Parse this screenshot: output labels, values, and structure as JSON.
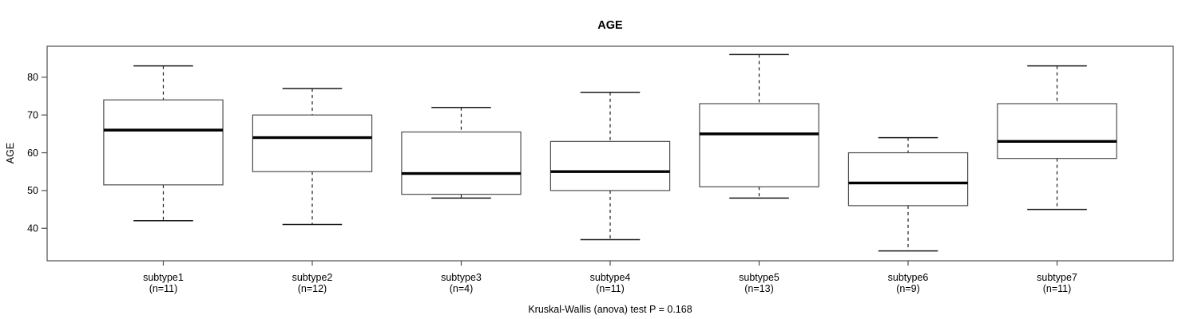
{
  "chart_data": {
    "type": "boxplot",
    "title": "AGE",
    "xlabel": "",
    "ylabel": "AGE",
    "caption": "Kruskal-Wallis (anova) test P = 0.168",
    "ylim": [
      31.4,
      88.2
    ],
    "yticks": [
      40,
      50,
      60,
      70,
      80
    ],
    "grid": false,
    "legend": "none",
    "whisker_line_style": "dashed",
    "box_width": 0.8,
    "groups": [
      {
        "label": "subtype1",
        "n": 11,
        "n_label": "(n=11)",
        "whisker_low": 42,
        "q1": 51.5,
        "median": 66,
        "q3": 74,
        "whisker_high": 83,
        "outliers": []
      },
      {
        "label": "subtype2",
        "n": 12,
        "n_label": "(n=12)",
        "whisker_low": 41,
        "q1": 55,
        "median": 64,
        "q3": 70,
        "whisker_high": 77,
        "outliers": []
      },
      {
        "label": "subtype3",
        "n": 4,
        "n_label": "(n=4)",
        "whisker_low": 48,
        "q1": 49,
        "median": 54.5,
        "q3": 65.5,
        "whisker_high": 72,
        "outliers": []
      },
      {
        "label": "subtype4",
        "n": 11,
        "n_label": "(n=11)",
        "whisker_low": 37,
        "q1": 50,
        "median": 55,
        "q3": 63,
        "whisker_high": 76,
        "outliers": []
      },
      {
        "label": "subtype5",
        "n": 13,
        "n_label": "(n=13)",
        "whisker_low": 48,
        "q1": 51,
        "median": 65,
        "q3": 73,
        "whisker_high": 86,
        "outliers": []
      },
      {
        "label": "subtype6",
        "n": 9,
        "n_label": "(n=9)",
        "whisker_low": 34,
        "q1": 46,
        "median": 52,
        "q3": 60,
        "whisker_high": 64,
        "outliers": []
      },
      {
        "label": "subtype7",
        "n": 11,
        "n_label": "(n=11)",
        "whisker_low": 45,
        "q1": 58.5,
        "median": 63,
        "q3": 73,
        "whisker_high": 83,
        "outliers": []
      }
    ],
    "colors": {
      "background": "#ffffff",
      "frame": "#4d4d4d",
      "box_border": "#4d4d4d",
      "box_fill": "#ffffff",
      "median": "#000000",
      "whisker": "#1a1a1a",
      "text": "#000000"
    }
  }
}
